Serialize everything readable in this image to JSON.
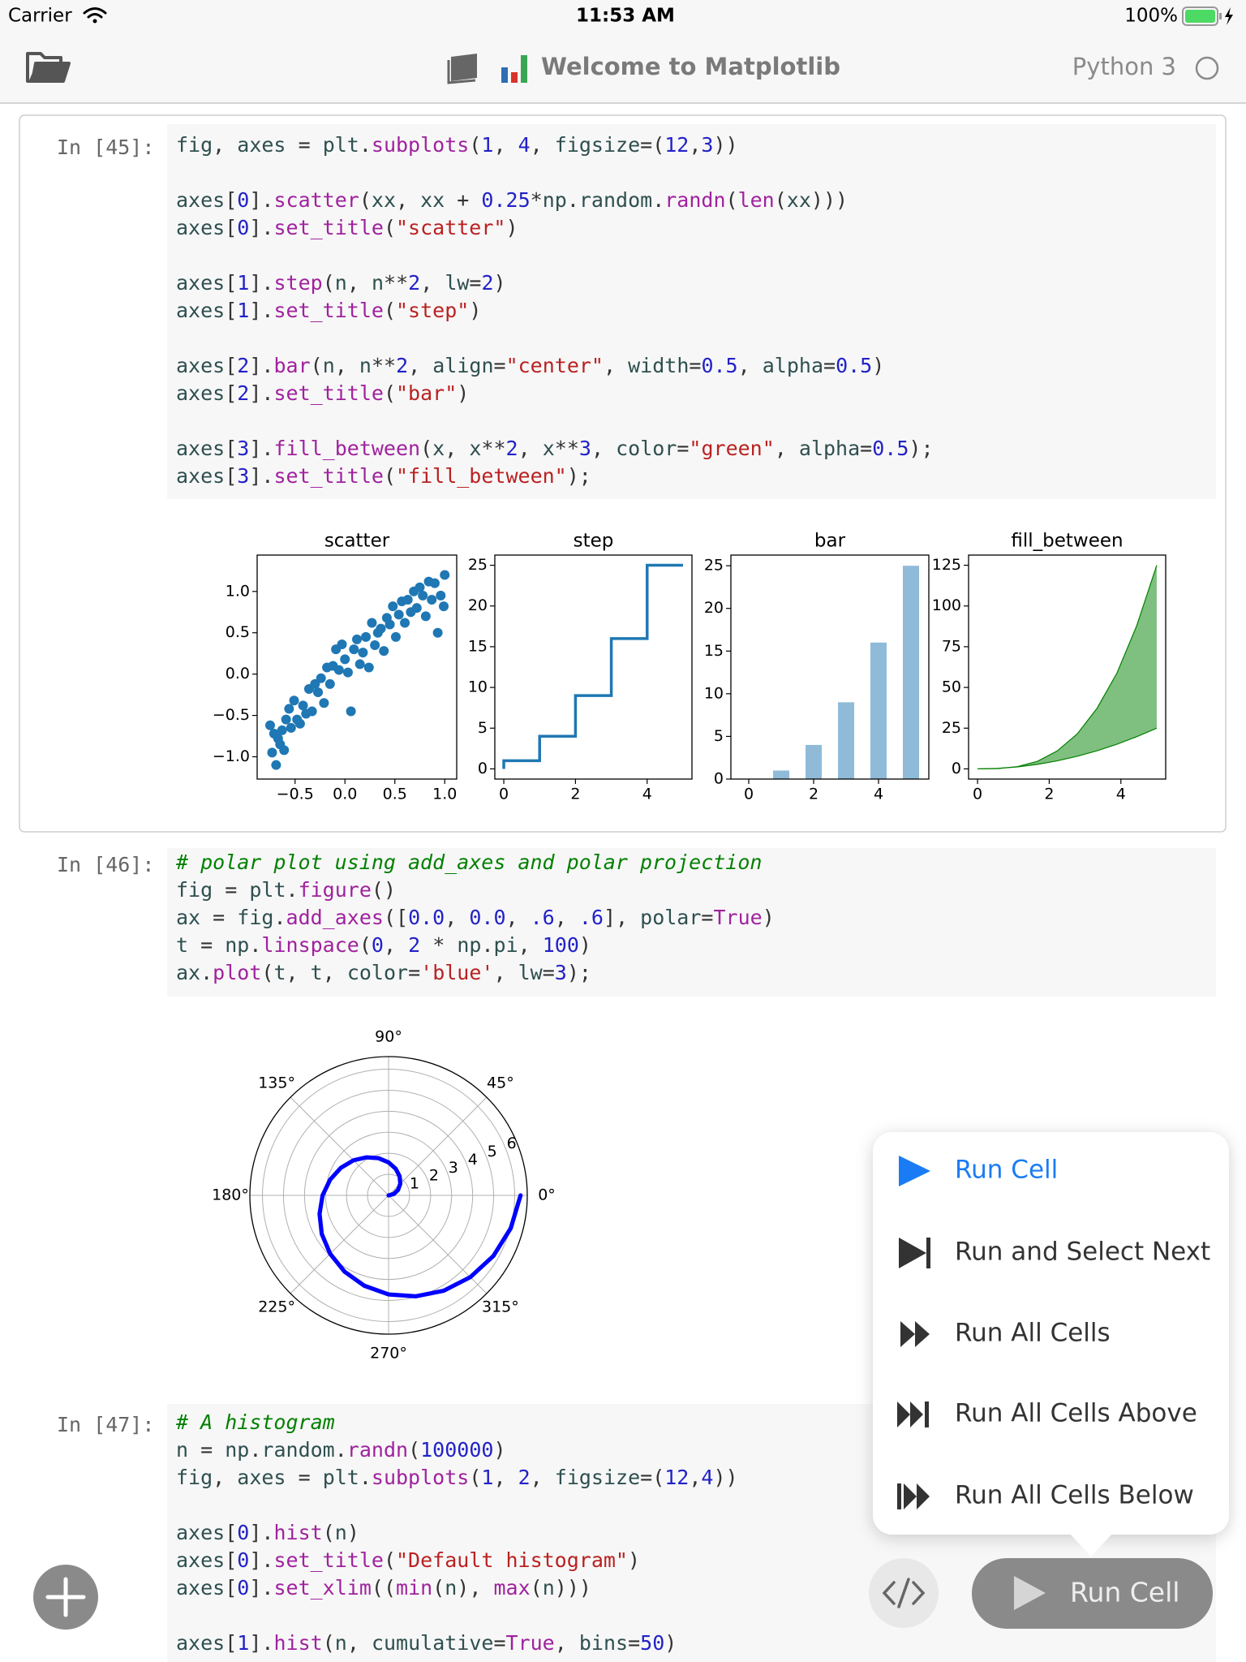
{
  "status_bar": {
    "carrier": "Carrier",
    "time": "11:53 AM",
    "battery": "100%"
  },
  "toolbar": {
    "title": "Welcome to Matplotlib",
    "kernel": "Python 3"
  },
  "cells": [
    {
      "prompt": "In [45]:",
      "code": [
        [
          "fig, axes = plt.subplots(1, 4, figsize=(12,3))"
        ],
        [
          "axes[0].scatter(xx, xx + 0.25*np.random.randn(len(xx)))",
          "axes[0].set_title(\"scatter\")"
        ],
        [
          "axes[1].step(n, n**2, lw=2)",
          "axes[1].set_title(\"step\")"
        ],
        [
          "axes[2].bar(n, n**2, align=\"center\", width=0.5, alpha=0.5)",
          "axes[2].set_title(\"bar\")"
        ],
        [
          "axes[3].fill_between(x, x**2, x**3, color=\"green\", alpha=0.5);",
          "axes[3].set_title(\"fill_between\");"
        ]
      ]
    },
    {
      "prompt": "In [46]:",
      "code": [
        [
          "# polar plot using add_axes and polar projection",
          "fig = plt.figure()",
          "ax = fig.add_axes([0.0, 0.0, .6, .6], polar=True)",
          "t = np.linspace(0, 2 * np.pi, 100)",
          "ax.plot(t, t, color='blue', lw=3);"
        ]
      ]
    },
    {
      "prompt": "In [47]:",
      "code": [
        [
          "# A histogram",
          "n = np.random.randn(100000)",
          "fig, axes = plt.subplots(1, 2, figsize=(12,4))"
        ],
        [
          "axes[0].hist(n)",
          "axes[0].set_title(\"Default histogram\")",
          "axes[0].set_xlim((min(n), max(n)))"
        ],
        [
          "axes[1].hist(n, cumulative=True, bins=50)"
        ]
      ]
    }
  ],
  "chart_data": [
    {
      "type": "scatter",
      "title": "scatter",
      "color": "#1f77b4",
      "x": [
        -0.75,
        -0.73,
        -0.71,
        -0.69,
        -0.67,
        -0.65,
        -0.63,
        -0.61,
        -0.59,
        -0.56,
        -0.54,
        -0.51,
        -0.48,
        -0.45,
        -0.42,
        -0.39,
        -0.36,
        -0.33,
        -0.3,
        -0.27,
        -0.24,
        -0.21,
        -0.18,
        -0.15,
        -0.12,
        -0.09,
        -0.06,
        -0.03,
        0,
        0.03,
        0.06,
        0.09,
        0.12,
        0.15,
        0.18,
        0.21,
        0.24,
        0.27,
        0.3,
        0.33,
        0.36,
        0.39,
        0.42,
        0.45,
        0.48,
        0.51,
        0.54,
        0.57,
        0.6,
        0.63,
        0.66,
        0.69,
        0.72,
        0.75,
        0.78,
        0.81,
        0.84,
        0.87,
        0.9,
        0.93,
        0.96,
        0.99,
        1.0
      ],
      "values": [
        -0.62,
        -0.95,
        -0.72,
        -1.1,
        -0.78,
        -0.85,
        -0.68,
        -0.92,
        -0.55,
        -0.42,
        -0.65,
        -0.32,
        -0.55,
        -0.6,
        -0.38,
        -0.48,
        -0.18,
        -0.45,
        -0.12,
        -0.22,
        -0.05,
        -0.35,
        0.08,
        -0.12,
        0.1,
        0.3,
        0.05,
        0.36,
        0.18,
        0.02,
        -0.45,
        0.3,
        0.42,
        0.12,
        0.26,
        0.45,
        0.08,
        0.62,
        0.35,
        0.5,
        0.55,
        0.28,
        0.68,
        0.6,
        0.82,
        0.45,
        0.72,
        0.88,
        0.62,
        0.9,
        0.75,
        1.0,
        0.8,
        1.05,
        0.95,
        0.7,
        1.12,
        0.9,
        1.1,
        0.5,
        0.95,
        0.82,
        1.2
      ],
      "xlim": [
        -0.88,
        1.12
      ],
      "ylim": [
        -1.27,
        1.44
      ],
      "xticks": [
        {
          "value": -0.5,
          "label": "−0.5"
        },
        {
          "value": 0,
          "label": "0.0"
        },
        0.5,
        {
          "value": 1,
          "label": "1.0"
        }
      ],
      "yticks": [
        {
          "value": -1,
          "label": "−1.0"
        },
        {
          "value": -0.5,
          "label": "−0.5"
        },
        {
          "value": 0,
          "label": "0.0"
        },
        0.5,
        {
          "value": 1,
          "label": "1.0"
        }
      ]
    },
    {
      "type": "step",
      "title": "step",
      "color": "#1f77b4",
      "x": [
        0,
        1,
        2,
        3,
        4,
        5
      ],
      "values": [
        0,
        1,
        4,
        9,
        16,
        25
      ],
      "xlim": [
        -0.25,
        5.25
      ],
      "ylim": [
        -1.25,
        26.25
      ],
      "xticks": [
        0,
        2,
        4
      ],
      "yticks": [
        0,
        5,
        10,
        15,
        20,
        25
      ]
    },
    {
      "type": "bar",
      "title": "bar",
      "color": "#1f77b4",
      "alpha": 0.5,
      "bar_width": 0.5,
      "x": [
        0,
        1,
        2,
        3,
        4,
        5
      ],
      "values": [
        0,
        1,
        4,
        9,
        16,
        25
      ],
      "xlim": [
        -0.55,
        5.55
      ],
      "ylim": [
        0,
        26.25
      ],
      "xticks": [
        0,
        2,
        4
      ],
      "yticks": [
        0,
        5,
        10,
        15,
        20,
        25
      ]
    },
    {
      "type": "fill_between",
      "title": "fill_between",
      "color": "green",
      "alpha": 0.5,
      "x": [
        0,
        0.56,
        1.11,
        1.67,
        2.22,
        2.78,
        3.33,
        3.89,
        4.44,
        5
      ],
      "y1": [
        0,
        0.31,
        1.23,
        2.78,
        4.94,
        7.72,
        11.11,
        15.12,
        19.75,
        25
      ],
      "y2": [
        0,
        0.17,
        1.37,
        4.63,
        10.97,
        21.43,
        37.04,
        58.81,
        87.79,
        125
      ],
      "xlim": [
        -0.25,
        5.25
      ],
      "ylim": [
        -6.25,
        131.25
      ],
      "xticks": [
        0,
        2,
        4
      ],
      "yticks": [
        0,
        25,
        50,
        75,
        100,
        125
      ]
    },
    {
      "type": "polar",
      "color": "blue",
      "theta": [
        0,
        15,
        30,
        45,
        60,
        75,
        90,
        105,
        120,
        135,
        150,
        165,
        180,
        195,
        210,
        225,
        240,
        255,
        270,
        285,
        300,
        315,
        330,
        345,
        360
      ],
      "r": [
        0,
        0.26,
        0.52,
        0.79,
        1.05,
        1.31,
        1.57,
        1.83,
        2.09,
        2.36,
        2.62,
        2.88,
        3.14,
        3.4,
        3.67,
        3.93,
        4.19,
        4.45,
        4.71,
        4.97,
        5.24,
        5.5,
        5.76,
        6.02,
        6.28
      ],
      "rlim": [
        0,
        6.6
      ],
      "rticks": [
        1,
        2,
        3,
        4,
        5,
        6
      ],
      "thetaticks": [
        {
          "value": 0,
          "label": "0°"
        },
        {
          "value": 45,
          "label": "45°"
        },
        {
          "value": 90,
          "label": "90°"
        },
        {
          "value": 135,
          "label": "135°"
        },
        {
          "value": 180,
          "label": "180°"
        },
        {
          "value": 225,
          "label": "225°"
        },
        {
          "value": 270,
          "label": "270°"
        },
        {
          "value": 315,
          "label": "315°"
        }
      ]
    }
  ],
  "run_menu": {
    "items": [
      "Run Cell",
      "Run and Select Next",
      "Run All Cells",
      "Run All Cells Above",
      "Run All Cells Below"
    ]
  },
  "run_button": "Run Cell"
}
